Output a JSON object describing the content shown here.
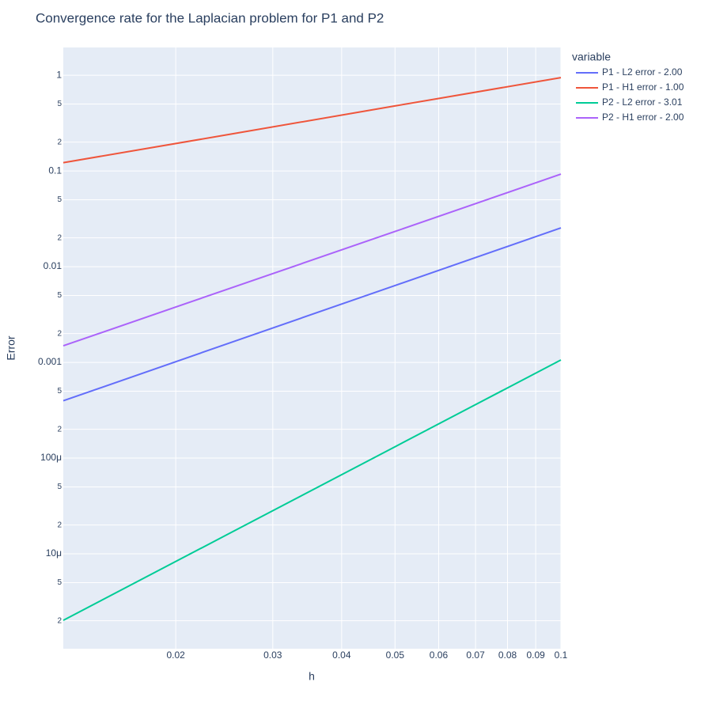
{
  "chart_data": {
    "type": "line",
    "title": "Convergence rate for the Laplacian problem for P1 and P2",
    "x_label": "h",
    "y_label": "Error",
    "x": [
      0.0125,
      0.025,
      0.05,
      0.1
    ],
    "series": [
      {
        "name": "P1 - L2 error - 2.00",
        "color": "#636efa",
        "values": [
          0.000397,
          0.00159,
          0.00635,
          0.0254
        ]
      },
      {
        "name": "P1 - H1 error - 1.00",
        "color": "#EF553B",
        "values": [
          0.122,
          0.241,
          0.478,
          0.944
        ]
      },
      {
        "name": "P2 - L2 error - 3.01",
        "color": "#00cc96",
        "values": [
          2.02e-06,
          1.63e-05,
          0.0001315,
          0.00106
        ]
      },
      {
        "name": "P2 - H1 error - 2.00",
        "color": "#ab63fa",
        "values": [
          0.00149,
          0.0059,
          0.0233,
          0.0927
        ]
      }
    ],
    "legend_title": "variable",
    "log_x": true,
    "log_y": true,
    "grid": true,
    "xlim": [
      0.0125,
      0.1
    ],
    "xticks": [
      0.02,
      0.03,
      0.04,
      0.05,
      0.06,
      0.07,
      0.08,
      0.09,
      0.1
    ],
    "ylim": [
      1.02e-06,
      1.95
    ],
    "yticks": [
      1,
      {
        "value": 0.5,
        "label": "5"
      },
      {
        "value": 0.2,
        "label": "2"
      },
      0.1,
      {
        "value": 0.05,
        "label": "5"
      },
      {
        "value": 0.02,
        "label": "2"
      },
      0.01,
      {
        "value": 0.005,
        "label": "5"
      },
      {
        "value": 0.002,
        "label": "2"
      },
      0.001,
      {
        "value": 0.0005,
        "label": "5"
      },
      {
        "value": 0.0002,
        "label": "2"
      },
      {
        "value": 0.0001,
        "label": "100μ"
      },
      {
        "value": 5e-05,
        "label": "5"
      },
      {
        "value": 2e-05,
        "label": "2"
      },
      {
        "value": 1e-05,
        "label": "10μ"
      },
      {
        "value": 5e-06,
        "label": "5"
      },
      {
        "value": 2e-06,
        "label": "2"
      }
    ]
  }
}
